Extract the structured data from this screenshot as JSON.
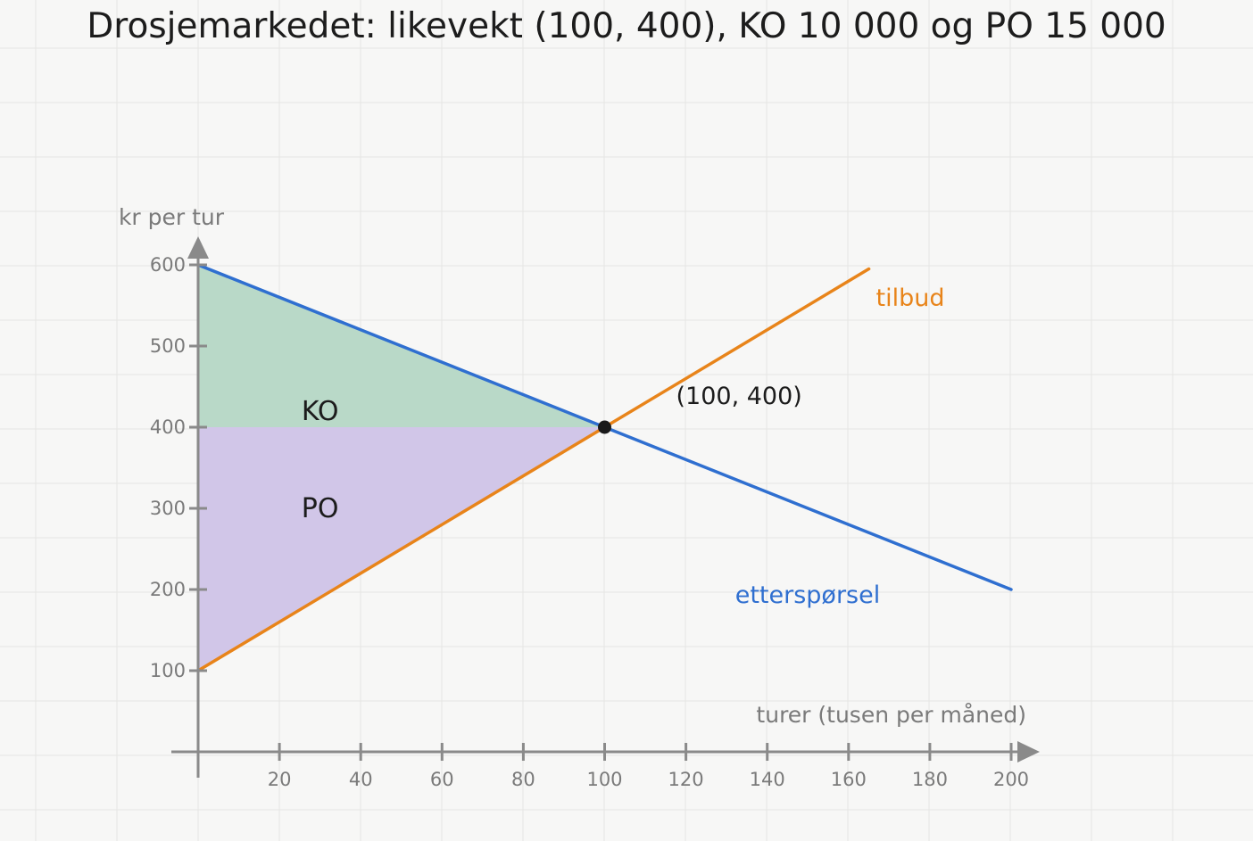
{
  "colors": {
    "background": "#f7f7f6",
    "grid": "#e6e6e4",
    "axis": "#8a8a8a",
    "demand": "#2f6fd0",
    "supply": "#e8841a",
    "ko_fill": "#b9d9c8",
    "po_fill": "#d1c6e8",
    "point": "#1a1a1a"
  },
  "chart_data": {
    "type": "line",
    "title": "Drosjemarkedet: likevekt (100, 400), KO 10 000 og PO 15 000",
    "xlabel": "turer (tusen per måned)",
    "ylabel": "kr per tur",
    "xlim": [
      0,
      200
    ],
    "ylim": [
      0,
      600
    ],
    "x_ticks": [
      20,
      40,
      60,
      80,
      100,
      120,
      140,
      160,
      180,
      200
    ],
    "y_ticks": [
      100,
      200,
      300,
      400,
      500,
      600
    ],
    "grid": true,
    "series": [
      {
        "name": "etterspørsel",
        "color": "#2f6fd0",
        "x": [
          0,
          200
        ],
        "y": [
          600,
          200
        ]
      },
      {
        "name": "tilbud",
        "color": "#e8841a",
        "x": [
          0,
          165
        ],
        "y": [
          100,
          595
        ]
      }
    ],
    "shaded_regions": [
      {
        "label": "KO",
        "color": "#b9d9c8",
        "points": [
          [
            0,
            600
          ],
          [
            100,
            400
          ],
          [
            0,
            400
          ]
        ],
        "label_at": [
          30,
          420
        ]
      },
      {
        "label": "PO",
        "color": "#d1c6e8",
        "points": [
          [
            0,
            400
          ],
          [
            100,
            400
          ],
          [
            0,
            100
          ]
        ],
        "label_at": [
          30,
          300
        ]
      }
    ],
    "equilibrium": {
      "x": 100,
      "y": 400,
      "label": "(100, 400)"
    }
  }
}
